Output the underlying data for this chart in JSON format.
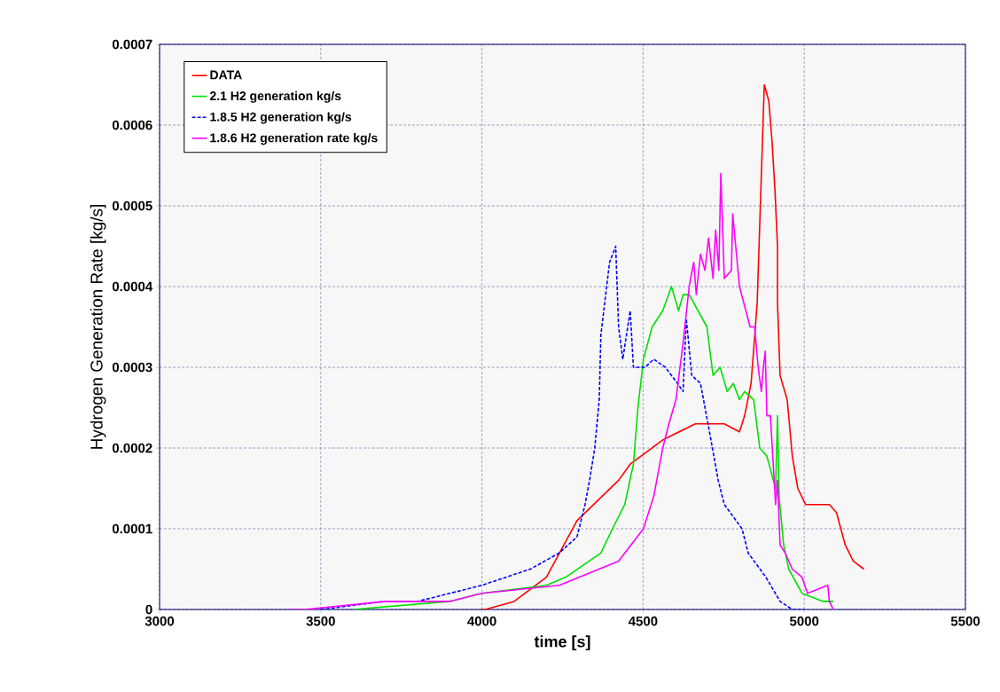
{
  "chart_data": {
    "type": "line",
    "xlabel": "time [s]",
    "ylabel": "Hydrogen Generation Rate [kg/s]",
    "xlim": [
      3000,
      5500
    ],
    "ylim": [
      0,
      0.0007
    ],
    "xticks": [
      3000,
      3500,
      4000,
      4500,
      5000,
      5500
    ],
    "yticks": [
      {
        "value": 0,
        "label": "0"
      },
      {
        "value": 0.0001,
        "label": "0.0001"
      },
      {
        "value": 0.0002,
        "label": "0.0002"
      },
      {
        "value": 0.0003,
        "label": "0.0003"
      },
      {
        "value": 0.0004,
        "label": "0.0004"
      },
      {
        "value": 0.0005,
        "label": "0.0005"
      },
      {
        "value": 0.0006,
        "label": "0.0006"
      },
      {
        "value": 0.0007,
        "label": "0.0007"
      }
    ],
    "grid": true,
    "legend": "top left",
    "marker": "none",
    "series": [
      {
        "name": "DATA",
        "color": "#ff0000",
        "line_style": "solid",
        "x": [
          3995,
          4010,
          4100,
          4200,
          4295,
          4424,
          4460,
          4561,
          4662,
          4752,
          4799,
          4815,
          4835,
          4854,
          4876,
          4890,
          4900,
          4909,
          4917,
          4917,
          4925,
          4947,
          4963,
          4980,
          5004,
          5078,
          5100,
          5127,
          5152,
          5185
        ],
        "values": [
          0,
          0,
          1e-05,
          4e-05,
          0.00011,
          0.00016,
          0.00018,
          0.00021,
          0.00023,
          0.00023,
          0.00022,
          0.00024,
          0.00028,
          0.00038,
          0.00065,
          0.00063,
          0.00058,
          0.00052,
          0.00045,
          0.00038,
          0.00029,
          0.00026,
          0.00019,
          0.00015,
          0.00013,
          0.00013,
          0.00012,
          8e-05,
          6e-05,
          5e-05
        ]
      },
      {
        "name": "2.1 H2 generation kg/s",
        "color": "#00e000",
        "line_style": "solid",
        "x": [
          3600,
          3900,
          4000,
          4200,
          4260,
          4369,
          4405,
          4443,
          4470,
          4484,
          4501,
          4528,
          4561,
          4588,
          4610,
          4624,
          4643,
          4698,
          4717,
          4739,
          4761,
          4780,
          4799,
          4815,
          4843,
          4862,
          4884,
          4911,
          4917,
          4922,
          4936,
          4952,
          4993,
          5059,
          5090
        ],
        "values": [
          0,
          1e-05,
          2e-05,
          3e-05,
          4e-05,
          7e-05,
          0.0001,
          0.00013,
          0.00018,
          0.00025,
          0.00031,
          0.00035,
          0.00037,
          0.0004,
          0.00037,
          0.00039,
          0.00039,
          0.00035,
          0.00029,
          0.0003,
          0.00027,
          0.00028,
          0.00026,
          0.00027,
          0.00026,
          0.0002,
          0.00019,
          0.00015,
          0.00024,
          0.00014,
          8e-05,
          5e-05,
          2e-05,
          1e-05,
          1e-05
        ]
      },
      {
        "name": "1.8.5 H2 generation kg/s",
        "color": "#0000ff",
        "line_style": "dashed",
        "x": [
          3500,
          3700,
          3800,
          3900,
          4000,
          4150,
          4240,
          4295,
          4320,
          4334,
          4350,
          4364,
          4369,
          4396,
          4415,
          4424,
          4437,
          4460,
          4470,
          4506,
          4533,
          4569,
          4607,
          4624,
          4634,
          4651,
          4678,
          4706,
          4733,
          4752,
          4807,
          4826,
          4881,
          4925,
          4963,
          5000
        ],
        "values": [
          0,
          1e-05,
          1e-05,
          2e-05,
          3e-05,
          5e-05,
          7e-05,
          9e-05,
          0.00013,
          0.00016,
          0.0002,
          0.00026,
          0.00034,
          0.00043,
          0.00045,
          0.00035,
          0.00031,
          0.00037,
          0.0003,
          0.0003,
          0.00031,
          0.0003,
          0.00028,
          0.00027,
          0.00036,
          0.00029,
          0.00028,
          0.00022,
          0.00016,
          0.00013,
          0.0001,
          7e-05,
          4e-05,
          1e-05,
          0,
          0
        ]
      },
      {
        "name": "1.8.6 H2 generation rate kg/s",
        "color": "#ff00ff",
        "line_style": "solid",
        "x": [
          3400,
          3450,
          3700,
          3900,
          4000,
          4240,
          4424,
          4501,
          4533,
          4561,
          4580,
          4602,
          4624,
          4643,
          4657,
          4665,
          4678,
          4692,
          4703,
          4717,
          4725,
          4735,
          4741,
          4752,
          4774,
          4778,
          4799,
          4832,
          4846,
          4857,
          4867,
          4873,
          4879,
          4884,
          4895,
          4911,
          4917,
          4925,
          4941,
          4963,
          4993,
          5010,
          5073,
          5078,
          5090
        ],
        "values": [
          0,
          0,
          1e-05,
          1e-05,
          2e-05,
          3e-05,
          6e-05,
          0.0001,
          0.00014,
          0.0002,
          0.00023,
          0.00026,
          0.00033,
          0.0004,
          0.00043,
          0.00039,
          0.00044,
          0.00042,
          0.00046,
          0.00041,
          0.00047,
          0.00042,
          0.00054,
          0.00041,
          0.00042,
          0.00049,
          0.0004,
          0.00035,
          0.00035,
          0.0003,
          0.00027,
          0.0003,
          0.00032,
          0.00024,
          0.00024,
          0.00013,
          0.00016,
          8e-05,
          7e-05,
          5e-05,
          4e-05,
          2e-05,
          3e-05,
          1e-05,
          0
        ]
      }
    ]
  }
}
